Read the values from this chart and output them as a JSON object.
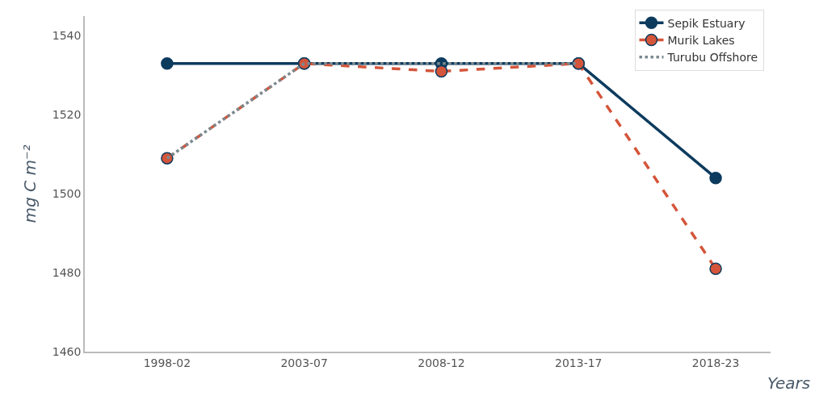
{
  "chart_data": {
    "type": "line",
    "xlabel": "Years",
    "ylabel": "mg C m⁻²",
    "categories": [
      "1998-02",
      "2003-07",
      "2008-12",
      "2013-17",
      "2018-23"
    ],
    "series": [
      {
        "name": "Sepik Estuary",
        "color": "#0d3b5e",
        "values": [
          1533,
          1533,
          1533,
          1533,
          1504
        ],
        "line_style": "solid",
        "marker": "circle"
      },
      {
        "name": "Murik Lakes",
        "color": "#d4553a",
        "values": [
          1509,
          1533,
          1531,
          1533,
          1481
        ],
        "line_style": "dashed",
        "marker": "circle"
      },
      {
        "name": "Turubu Offshore",
        "color": "#7a8a90",
        "values": [
          1509,
          1533,
          1533,
          1533,
          null
        ],
        "line_style": "dotted",
        "marker": "none"
      }
    ],
    "ylim": [
      1460,
      1545
    ],
    "yticks": [
      1460,
      1480,
      1500,
      1520,
      1540
    ],
    "legend": "top right"
  }
}
